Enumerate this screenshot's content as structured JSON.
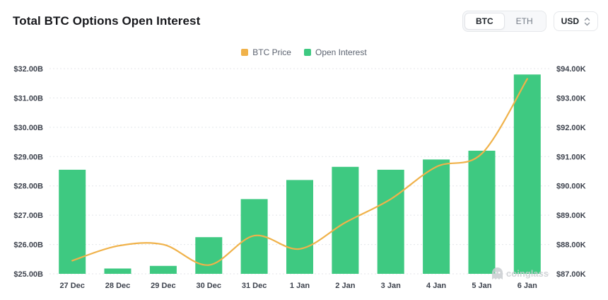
{
  "header": {
    "title": "Total BTC Options Open Interest",
    "toggle": {
      "btc": "BTC",
      "eth": "ETH"
    },
    "currency": "USD"
  },
  "legend": [
    {
      "label": "BTC Price",
      "color": "#F0B24A"
    },
    {
      "label": "Open Interest",
      "color": "#3EC981"
    }
  ],
  "watermark": "coinglass",
  "chart_data": {
    "type": "bar+line combo",
    "categories": [
      "27 Dec",
      "28 Dec",
      "29 Dec",
      "30 Dec",
      "31 Dec",
      "1 Jan",
      "2 Jan",
      "3 Jan",
      "4 Jan",
      "5 Jan",
      "6 Jan"
    ],
    "series": [
      {
        "name": "Open Interest",
        "type": "bar",
        "axis": "left",
        "color": "#3EC981",
        "unit": "USD billions",
        "values": [
          28.55,
          25.18,
          25.27,
          26.25,
          27.55,
          28.2,
          28.65,
          28.55,
          28.9,
          29.2,
          31.8
        ]
      },
      {
        "name": "BTC Price",
        "type": "line",
        "axis": "right",
        "color": "#F0B24A",
        "unit": "USD thousands",
        "values": [
          87.45,
          87.95,
          88.0,
          87.3,
          88.3,
          87.85,
          88.75,
          89.55,
          90.65,
          91.1,
          93.65
        ]
      }
    ],
    "left_axis": {
      "min": 25,
      "max": 32,
      "ticks": [
        "$32.00B",
        "$31.00B",
        "$30.00B",
        "$29.00B",
        "$28.00B",
        "$27.00B",
        "$26.00B",
        "$25.00B"
      ]
    },
    "right_axis": {
      "min": 87,
      "max": 94,
      "ticks": [
        "$94.00K",
        "$93.00K",
        "$92.00K",
        "$91.00K",
        "$90.00K",
        "$89.00K",
        "$88.00K",
        "$87.00K"
      ]
    },
    "grid": "horizontal dotted",
    "legend_position": "top-center"
  }
}
